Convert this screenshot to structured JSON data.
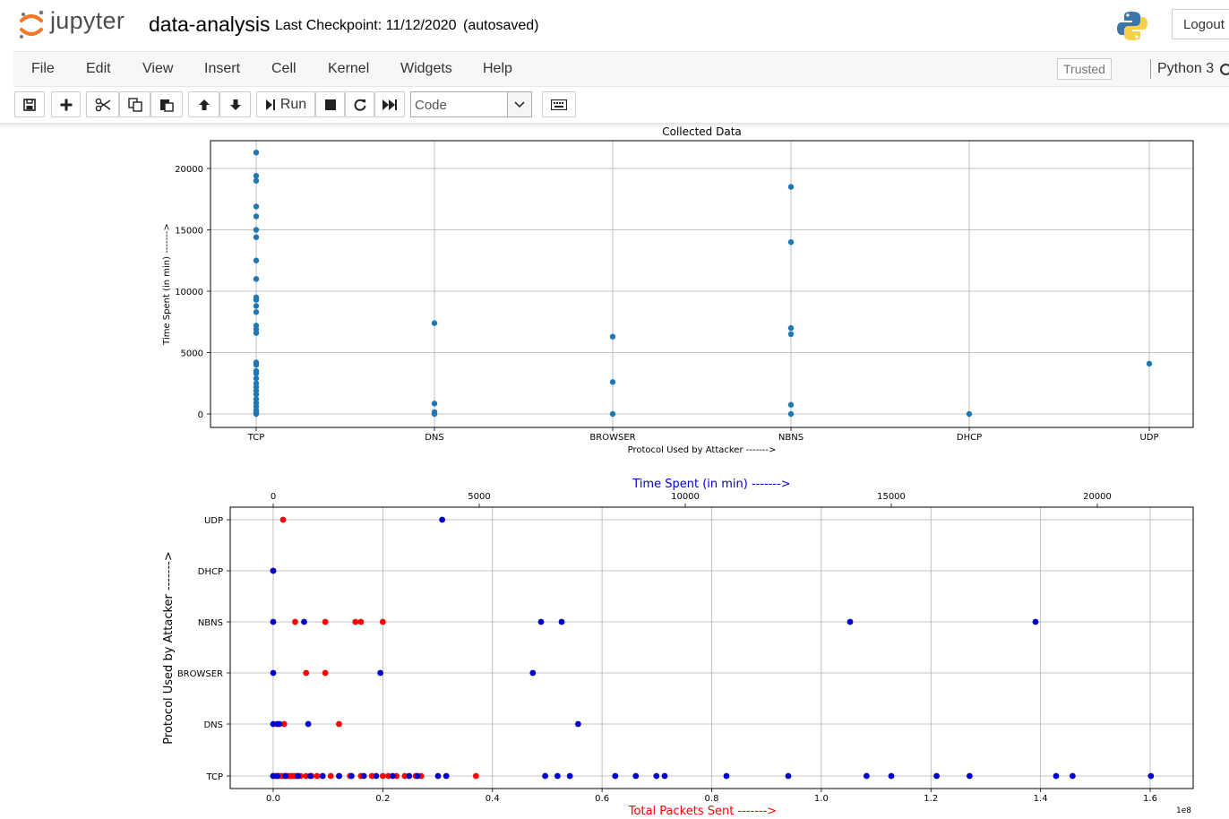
{
  "header": {
    "logo_text": "jupyter",
    "notebook_title": "data-analysis",
    "checkpoint_label": "Last Checkpoint: 11/12/2020",
    "autosave_status": "(autosaved)",
    "logout_label": "Logout"
  },
  "menu": {
    "items": [
      "File",
      "Edit",
      "View",
      "Insert",
      "Cell",
      "Kernel",
      "Widgets",
      "Help"
    ],
    "trusted_label": "Trusted",
    "kernel_name": "Python 3"
  },
  "toolbar": {
    "run_label": "Run",
    "cell_type": "Code",
    "buttons": [
      "save-icon",
      "plus-icon",
      "scissors-icon",
      "copy-icon",
      "paste-icon",
      "arrow-up-icon",
      "arrow-down-icon",
      "run-icon",
      "stop-icon",
      "restart-icon",
      "fast-forward-icon",
      "keyboard-icon"
    ]
  },
  "chart_data": [
    {
      "type": "scatter",
      "title": "Collected Data",
      "xlabel": "Protocol Used by Attacker ------->",
      "ylabel": "Time Spent (in min) ------->",
      "categories": [
        "TCP",
        "DNS",
        "BROWSER",
        "NBNS",
        "DHCP",
        "UDP"
      ],
      "ylim": [
        -1100,
        22300
      ],
      "yticks": [
        0,
        5000,
        10000,
        15000,
        20000
      ],
      "grid": true,
      "color": "#1f77b4",
      "points": {
        "TCP": [
          21300,
          19400,
          19000,
          16900,
          16100,
          15000,
          14400,
          12500,
          11000,
          9500,
          9300,
          8800,
          8300,
          7200,
          6900,
          6600,
          4200,
          4000,
          3500,
          3300,
          2900,
          2500,
          2200,
          1900,
          1600,
          1200,
          900,
          600,
          300,
          100,
          0
        ],
        "DNS": [
          7400,
          850,
          150,
          0
        ],
        "BROWSER": [
          6300,
          2600,
          0
        ],
        "NBNS": [
          18500,
          14000,
          7000,
          6500,
          750,
          0
        ],
        "DHCP": [
          0
        ],
        "UDP": [
          4100
        ]
      }
    },
    {
      "type": "scatter",
      "title": "",
      "xlabel": "Total Packets Sent ------->",
      "xlabel_color": "#ff0000",
      "x_multiplier_label": "1e8",
      "top_xlabel": "Time Spent (in min) ------->",
      "top_xlabel_color": "#0000cc",
      "ylabel": "Protocol Used by Attacker ------->",
      "categories": [
        "TCP",
        "DNS",
        "BROWSER",
        "NBNS",
        "DHCP",
        "UDP"
      ],
      "xlim": [
        -0.08,
        1.67
      ],
      "xticks": [
        0.0,
        0.2,
        0.4,
        0.6,
        0.8,
        1.0,
        1.2,
        1.4,
        1.6
      ],
      "xtick_labels": [
        "0.0",
        "0.2",
        "0.4",
        "0.6",
        "0.8",
        "1.0",
        "1.2",
        "1.4",
        "1.6"
      ],
      "top_xlim": [
        -1050,
        21900
      ],
      "top_xticks": [
        0,
        5000,
        10000,
        15000,
        20000
      ],
      "grid": true,
      "series": [
        {
          "name": "Total Packets Sent",
          "color": "#ff0000",
          "axis": "bottom",
          "points": {
            "TCP": [
              0.0,
              0.005,
              0.01,
              0.015,
              0.02,
              0.025,
              0.03,
              0.035,
              0.04,
              0.045,
              0.05,
              0.06,
              0.07,
              0.08,
              0.09,
              0.105,
              0.12,
              0.14,
              0.16,
              0.18,
              0.2,
              0.21,
              0.225,
              0.24,
              0.26,
              0.27,
              0.37
            ],
            "DNS": [
              0.02,
              0.12
            ],
            "BROWSER": [
              0.06,
              0.095
            ],
            "NBNS": [
              0.04,
              0.095,
              0.15,
              0.16,
              0.2
            ],
            "DHCP": [
              0.0
            ],
            "UDP": [
              0.018
            ]
          }
        },
        {
          "name": "Time Spent (in min)",
          "color": "#0000cc",
          "axis": "top",
          "points": {
            "TCP": [
              0,
              100,
              300,
              600,
              900,
              1200,
              1600,
              1900,
              2200,
              2500,
              2900,
              3300,
              3500,
              4000,
              4200,
              6600,
              6900,
              7200,
              8300,
              8800,
              9300,
              9500,
              11000,
              12500,
              14400,
              15000,
              16100,
              16900,
              19000,
              19400,
              21300
            ],
            "DNS": [
              0,
              100,
              150,
              850,
              7400
            ],
            "BROWSER": [
              0,
              2600,
              6300
            ],
            "NBNS": [
              0,
              750,
              6500,
              7000,
              14000,
              18500
            ],
            "DHCP": [
              0
            ],
            "UDP": [
              4100
            ]
          }
        }
      ]
    }
  ]
}
